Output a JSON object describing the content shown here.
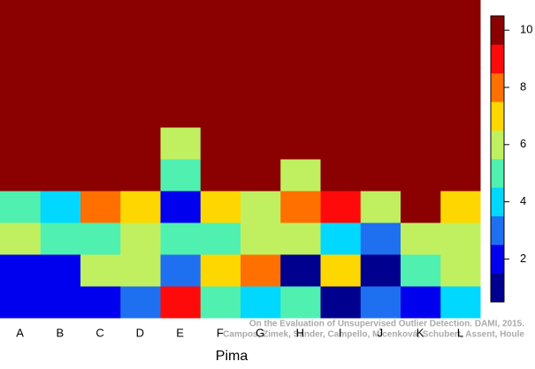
{
  "chart_data": {
    "type": "heatmap",
    "x_label": "Pima",
    "categories": [
      "A",
      "B",
      "C",
      "D",
      "E",
      "F",
      "G",
      "H",
      "I",
      "J",
      "K",
      "L"
    ],
    "values": [
      [
        10,
        10,
        10,
        10,
        10,
        10,
        10,
        10,
        10,
        10,
        10,
        10
      ],
      [
        10,
        10,
        10,
        10,
        10,
        10,
        10,
        10,
        10,
        10,
        10,
        10
      ],
      [
        10,
        10,
        10,
        10,
        10,
        10,
        10,
        10,
        10,
        10,
        10,
        10
      ],
      [
        10,
        10,
        10,
        10,
        10,
        10,
        10,
        10,
        10,
        10,
        10,
        10
      ],
      [
        10,
        10,
        10,
        10,
        6,
        10,
        10,
        10,
        10,
        10,
        10,
        10
      ],
      [
        10,
        10,
        10,
        10,
        5,
        10,
        10,
        6,
        10,
        10,
        10,
        10
      ],
      [
        5,
        4,
        8,
        7,
        2,
        7,
        6,
        8,
        9,
        6,
        10,
        7
      ],
      [
        6,
        5,
        5,
        6,
        5,
        5,
        6,
        6,
        4,
        3,
        6,
        6
      ],
      [
        2,
        2,
        6,
        6,
        3,
        7,
        8,
        1,
        7,
        1,
        5,
        6
      ],
      [
        2,
        2,
        2,
        3,
        9,
        5,
        4,
        5,
        1,
        3,
        2,
        4
      ]
    ],
    "colors": [
      "#00008f",
      "#0000ee",
      "#1f70f0",
      "#00d8ff",
      "#50f0b0",
      "#c0f060",
      "#ffd700",
      "#ff7000",
      "#ff0a0a",
      "#8b0000"
    ],
    "zlim": [
      0.5,
      10.5
    ],
    "zticks": [
      2,
      4,
      6,
      8,
      10
    ],
    "note": [
      "On the Evaluation of Unsupervised Outlier Detection. DAMI, 2015.",
      "Campos, Zimek, Sander, Campello, Micenková, Schubert, Assent, Houle"
    ]
  }
}
